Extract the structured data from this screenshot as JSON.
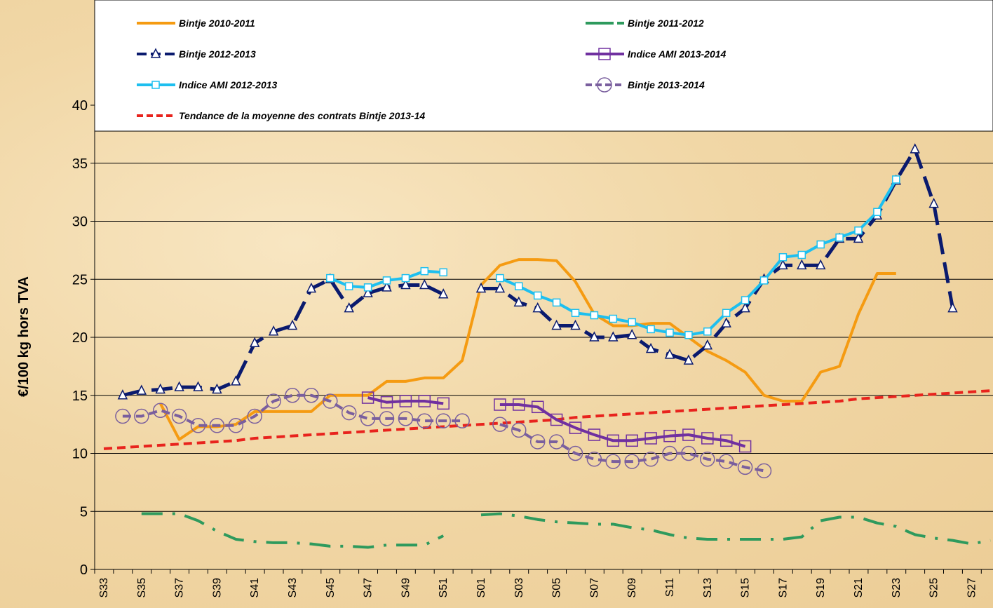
{
  "chart_data": {
    "type": "line",
    "y_label": "€/100 kg hors TVA",
    "categories": [
      "S33",
      null,
      "S35",
      null,
      "S37",
      null,
      "S39",
      null,
      "S41",
      null,
      "S43",
      null,
      "S45",
      null,
      "S47",
      null,
      "S49",
      null,
      "S51",
      null,
      "S01",
      null,
      "S03",
      null,
      "S05",
      null,
      "S07",
      null,
      "S09",
      null,
      "S11",
      null,
      "S13",
      null,
      "S15",
      null,
      "S17",
      null,
      "S19",
      null,
      "S21",
      null,
      "S23",
      null,
      "S25",
      null,
      "S27",
      null
    ],
    "ylim": [
      0,
      40
    ],
    "yticks": [
      0,
      5,
      10,
      15,
      20,
      25,
      30,
      35,
      40
    ],
    "grid": true,
    "series": [
      {
        "name": "Bintje 2010-2011",
        "color": "#f59b12",
        "dash": "solid",
        "marker": "none",
        "values": [
          null,
          null,
          null,
          14.3,
          11.2,
          12.3,
          12.3,
          12.5,
          13.6,
          13.6,
          13.6,
          13.6,
          15,
          15,
          15,
          16.2,
          16.2,
          16.5,
          16.5,
          18,
          24.5,
          26.2,
          26.7,
          26.7,
          26.6,
          24.8,
          22,
          21,
          21,
          21.2,
          21.2,
          20,
          18.8,
          18,
          17,
          15,
          14.5,
          14.5,
          17,
          17.5,
          22,
          25.5,
          25.5,
          null,
          null,
          null,
          null,
          null
        ]
      },
      {
        "name": "Bintje 2011-2012",
        "color": "#2e9a5d",
        "dash": "dashdot",
        "marker": "none",
        "values": [
          null,
          null,
          4.8,
          4.8,
          4.8,
          4.2,
          3.3,
          2.6,
          2.4,
          2.3,
          2.3,
          2.2,
          2,
          2,
          1.9,
          2.1,
          2.1,
          2.1,
          2.9,
          null,
          4.7,
          4.8,
          4.6,
          4.3,
          4.1,
          4,
          3.9,
          3.9,
          3.6,
          3.4,
          3,
          2.7,
          2.6,
          2.6,
          2.6,
          2.6,
          2.6,
          2.8,
          4.2,
          4.5,
          4.5,
          4,
          3.7,
          3,
          2.7,
          2.5,
          2.2,
          2.5
        ]
      },
      {
        "name": "Bintje 2012-2013",
        "color": "#0a1a6e",
        "dash": "longdash",
        "marker": "triangle",
        "values": [
          null,
          15,
          15.4,
          15.5,
          15.7,
          15.7,
          15.5,
          16.2,
          19.5,
          20.5,
          21,
          24.2,
          25,
          22.5,
          23.8,
          24.3,
          24.5,
          24.5,
          23.7,
          null,
          24.2,
          24.2,
          23,
          22.5,
          21,
          21,
          20,
          20,
          20.2,
          19,
          18.5,
          18,
          19.3,
          21.2,
          22.5,
          25,
          26.2,
          26.2,
          26.2,
          28.5,
          28.5,
          30.5,
          33.5,
          36.2,
          31.5,
          22.5,
          null,
          null
        ]
      },
      {
        "name": "Indice AMI 2013-2014",
        "color": "#7030a0",
        "dash": "solid",
        "marker": "square",
        "values": [
          null,
          null,
          null,
          null,
          null,
          null,
          null,
          null,
          null,
          null,
          null,
          null,
          null,
          null,
          14.8,
          14.4,
          14.5,
          14.5,
          14.3,
          null,
          null,
          14.2,
          14.2,
          14,
          12.9,
          12.2,
          11.6,
          11.1,
          11.1,
          11.3,
          11.5,
          11.6,
          11.3,
          11.1,
          10.6,
          null,
          null,
          null,
          null,
          null,
          null,
          null,
          null,
          null,
          null,
          null,
          null,
          null
        ]
      },
      {
        "name": "Indice AMI 2012-2013",
        "color": "#1ebfef",
        "dash": "solid",
        "marker": "squarefill",
        "values": [
          null,
          null,
          null,
          null,
          null,
          null,
          null,
          null,
          null,
          null,
          null,
          null,
          25.1,
          24.4,
          24.3,
          24.9,
          25.1,
          25.7,
          25.6,
          null,
          null,
          25.1,
          24.4,
          23.6,
          23,
          22.1,
          21.9,
          21.6,
          21.3,
          20.7,
          20.4,
          20.2,
          20.5,
          22.1,
          23.2,
          24.9,
          26.9,
          27.1,
          28,
          28.6,
          29.2,
          30.8,
          33.6,
          null,
          null,
          null,
          null,
          null
        ]
      },
      {
        "name": "Bintje 2013-2014",
        "color": "#7a5f9e",
        "dash": "dash",
        "marker": "circle",
        "values": [
          null,
          13.2,
          13.2,
          13.7,
          13.2,
          12.4,
          12.4,
          12.4,
          13.2,
          14.5,
          15,
          15,
          14.5,
          13.5,
          13,
          13,
          13,
          12.8,
          12.8,
          12.8,
          null,
          12.5,
          12,
          11,
          11,
          10,
          9.5,
          9.3,
          9.3,
          9.5,
          10,
          10,
          9.5,
          9.3,
          8.8,
          8.5,
          null,
          null,
          null,
          null,
          null,
          null,
          null,
          null,
          null,
          null,
          null,
          null
        ]
      },
      {
        "name": "Tendance de la moyenne des contrats Bintje 2013-14",
        "color": "#e8231d",
        "dash": "dash",
        "marker": "none",
        "values": [
          10.4,
          10.5,
          10.6,
          10.7,
          10.8,
          10.9,
          11,
          11.1,
          11.3,
          11.4,
          11.5,
          11.6,
          11.7,
          11.8,
          11.9,
          12,
          12.1,
          12.2,
          12.3,
          12.4,
          12.5,
          12.6,
          12.7,
          12.8,
          12.9,
          13.1,
          13.2,
          13.3,
          13.4,
          13.5,
          13.6,
          13.7,
          13.8,
          13.9,
          14,
          14.1,
          14.2,
          14.3,
          14.4,
          14.5,
          14.7,
          14.8,
          14.9,
          15,
          15.1,
          15.2,
          15.3,
          15.4
        ]
      }
    ]
  }
}
